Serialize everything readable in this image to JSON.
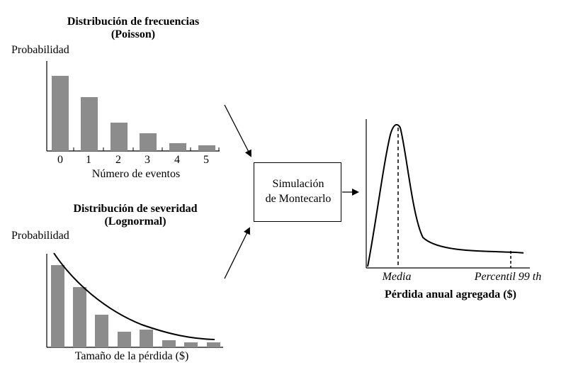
{
  "frequency": {
    "title_line1": "Distribución de frecuencias",
    "title_line2": "(Poisson)",
    "ylabel": "Probabilidad",
    "xlabel": "Número de eventos",
    "ticks": [
      "0",
      "1",
      "2",
      "3",
      "4",
      "5"
    ],
    "bar_fill": "#8c8c8c"
  },
  "severity": {
    "title_line1": "Distribución de severidad",
    "title_line2": "(Lognormal)",
    "ylabel": "Probabilidad",
    "xlabel": "Tamaño de la pérdida ($)",
    "bar_fill": "#8c8c8c"
  },
  "process": {
    "label_line1": "Simulación",
    "label_line2": "de Montecarlo"
  },
  "result": {
    "mean_label": "Media",
    "percentile_label": "Percentil 99 th",
    "xlabel": "Pérdida anual agregada ($)"
  }
}
